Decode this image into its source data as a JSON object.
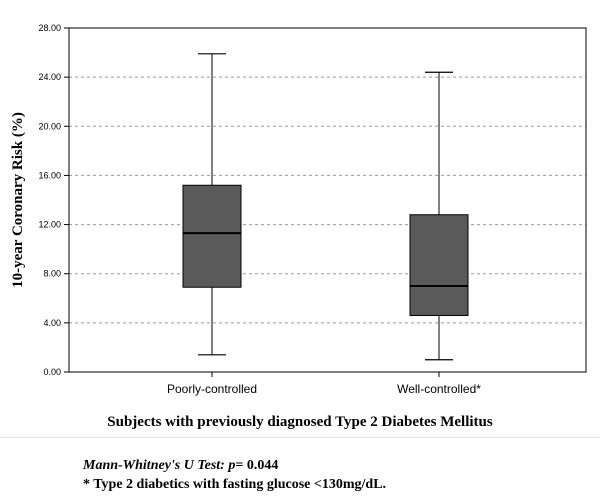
{
  "chart_data": {
    "type": "boxplot",
    "categories": [
      "Poorly-controlled",
      "Well-controlled*"
    ],
    "boxes": [
      {
        "category": "Poorly-controlled",
        "whisker_low": 1.4,
        "q1": 6.9,
        "median": 11.3,
        "q3": 15.2,
        "whisker_high": 25.9
      },
      {
        "category": "Well-controlled*",
        "whisker_low": 1.0,
        "q1": 4.6,
        "median": 7.0,
        "q3": 12.8,
        "whisker_high": 24.4
      }
    ],
    "ylabel": "10-year Coronary Risk (%)",
    "xlabel": "Subjects with previously diagnosed Type 2 Diabetes Mellitus",
    "ylim": [
      0,
      28
    ],
    "yticks": [
      "0.00",
      "4.00",
      "8.00",
      "12.00",
      "16.00",
      "20.00",
      "24.00",
      "28.00"
    ],
    "grid": "horizontal-dashed",
    "box_color": "#5a5a5a"
  },
  "footnotes": {
    "test_label": "Mann-Whitney's U Test:",
    "p_label": "p",
    "p_value": "= 0.044",
    "note": "* Type 2 diabetics with fasting glucose <130mg/dL."
  }
}
